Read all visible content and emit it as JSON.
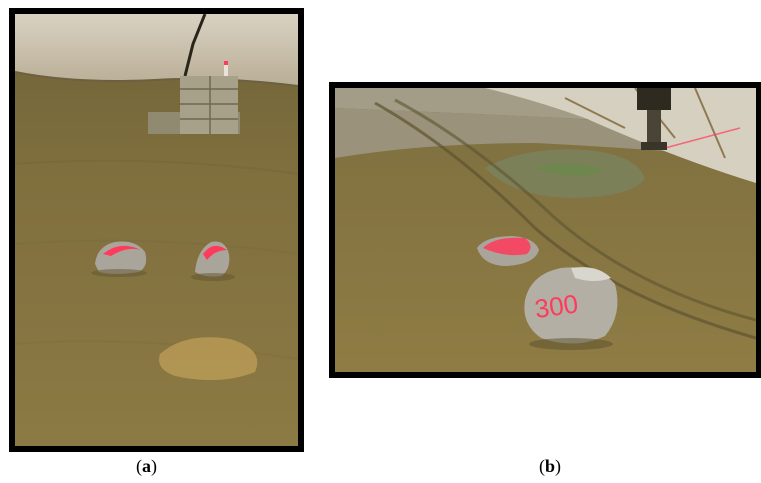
{
  "figure": {
    "panels": [
      {
        "id": "a",
        "caption_open": "(",
        "caption_letter": "a",
        "caption_close": ")",
        "marking_text": ""
      },
      {
        "id": "b",
        "caption_open": "(",
        "caption_letter": "b",
        "caption_close": ")",
        "marking_text": "300"
      }
    ]
  },
  "colors": {
    "frame": "#000000",
    "soil": "#8a7840",
    "wall": "#cfc6b2",
    "rock": "#a9a59b",
    "paint": "#ff3a5c"
  }
}
